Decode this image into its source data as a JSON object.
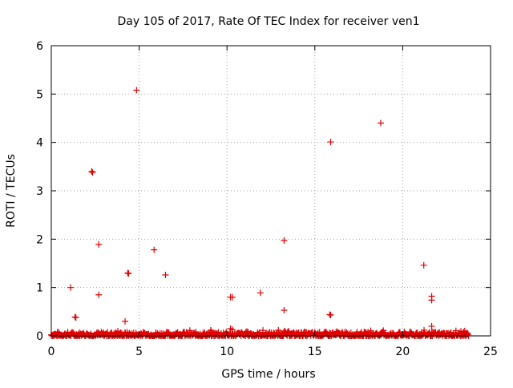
{
  "chart_data": {
    "type": "scatter",
    "title": "Day 105 of 2017, Rate Of TEC Index for receiver ven1",
    "xlabel": "GPS time / hours",
    "ylabel": "ROTI / TECUs",
    "xlim": [
      0,
      25
    ],
    "ylim": [
      0,
      6
    ],
    "x_ticks": [
      0,
      5,
      10,
      15,
      20,
      25
    ],
    "y_ticks": [
      0,
      1,
      2,
      3,
      4,
      5,
      6
    ],
    "grid": true,
    "marker": "+",
    "marker_color": "#e00000",
    "series": [
      {
        "name": "ROTI",
        "color": "#e00000",
        "points": [
          [
            4.85,
            5.08
          ],
          [
            18.75,
            4.4
          ],
          [
            15.9,
            4.01
          ],
          [
            2.3,
            3.4
          ],
          [
            2.35,
            3.38
          ],
          [
            13.25,
            1.97
          ],
          [
            2.7,
            1.89
          ],
          [
            5.85,
            1.78
          ],
          [
            21.2,
            1.46
          ],
          [
            4.35,
            1.3
          ],
          [
            4.4,
            1.29
          ],
          [
            6.5,
            1.26
          ],
          [
            1.1,
            1.0
          ],
          [
            11.9,
            0.89
          ],
          [
            2.7,
            0.85
          ],
          [
            21.65,
            0.82
          ],
          [
            10.2,
            0.8
          ],
          [
            10.3,
            0.8
          ],
          [
            21.65,
            0.74
          ],
          [
            13.25,
            0.53
          ],
          [
            15.85,
            0.44
          ],
          [
            15.9,
            0.43
          ],
          [
            1.35,
            0.39
          ],
          [
            1.4,
            0.38
          ],
          [
            4.2,
            0.3
          ],
          [
            21.65,
            0.2
          ],
          [
            10.2,
            0.15
          ],
          [
            10.3,
            0.13
          ]
        ],
        "baseline_band": {
          "x_range": [
            0,
            23.75
          ],
          "y_range": [
            0.0,
            0.12
          ],
          "note": "dense band of low ROTI values"
        }
      }
    ]
  }
}
